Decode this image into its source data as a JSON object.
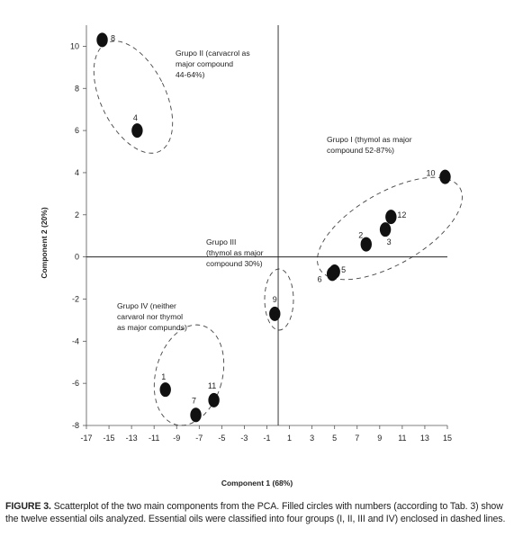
{
  "chart_data": {
    "type": "scatter",
    "xlabel": "Component 1 (68%)",
    "ylabel": "Component 2 (20%)",
    "xlim": [
      -17,
      15
    ],
    "ylim": [
      -8,
      11
    ],
    "xticks": [
      "-17",
      "-15",
      "-13",
      "-11",
      "-9",
      "-7",
      "-5",
      "-3",
      "-1",
      "1",
      "3",
      "5",
      "7",
      "9",
      "11",
      "13",
      "15"
    ],
    "yticks": [
      "-8",
      "-6",
      "-4",
      "-2",
      "0",
      "2",
      "4",
      "6",
      "8",
      "10"
    ],
    "points": [
      {
        "label": "1",
        "x": -10.0,
        "y": -6.3
      },
      {
        "label": "2",
        "x": 7.8,
        "y": 0.6
      },
      {
        "label": "3",
        "x": 9.5,
        "y": 1.3
      },
      {
        "label": "4",
        "x": -12.5,
        "y": 6.0
      },
      {
        "label": "5",
        "x": 5.0,
        "y": -0.7
      },
      {
        "label": "6",
        "x": 4.8,
        "y": -0.8
      },
      {
        "label": "7",
        "x": -7.3,
        "y": -7.5
      },
      {
        "label": "8",
        "x": -15.6,
        "y": 10.3
      },
      {
        "label": "9",
        "x": -0.3,
        "y": -2.7
      },
      {
        "label": "10",
        "x": 14.8,
        "y": 3.8
      },
      {
        "label": "11",
        "x": -5.7,
        "y": -6.8
      },
      {
        "label": "12",
        "x": 10.0,
        "y": 1.9
      }
    ],
    "groups": [
      {
        "name": "Grupo I",
        "lines": [
          "Grupo I (thymol as major",
          "compound 52-87%)"
        ]
      },
      {
        "name": "Grupo II",
        "lines": [
          "Grupo II (carvacrol as",
          "major compound",
          "44-64%)"
        ]
      },
      {
        "name": "Grupo III",
        "lines": [
          "Grupo III",
          "(thymol as major",
          "compound 30%)"
        ]
      },
      {
        "name": "Grupo IV",
        "lines": [
          "Grupo IV (neither",
          "carvarol nor thymol",
          "as major compunds)"
        ]
      }
    ]
  },
  "caption": {
    "lead": "FIGURE 3.",
    "text": " Scatterplot of the two main components from the PCA. Filled circles with numbers (according to Tab. 3) show the twelve essential oils analyzed. Essential oils were classified into four groups (I, II, III and IV) enclosed in dashed lines."
  }
}
